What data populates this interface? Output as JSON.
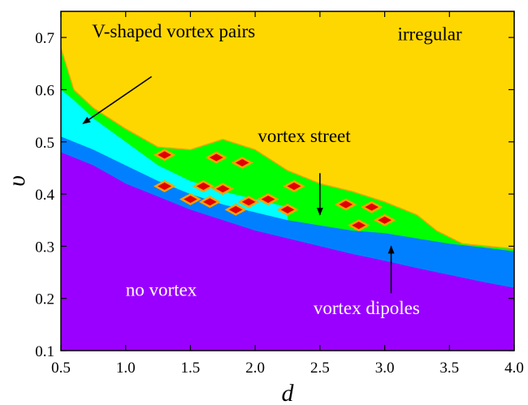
{
  "chart_data": {
    "type": "heatmap",
    "xlabel": "d",
    "ylabel": "υ",
    "xlim": [
      0.5,
      4.0
    ],
    "ylim": [
      0.1,
      0.75
    ],
    "xticks": [
      "0.5",
      "1.0",
      "1.5",
      "2.0",
      "2.5",
      "3.0",
      "3.5",
      "4.0"
    ],
    "yticks": [
      "0.1",
      "0.2",
      "0.3",
      "0.4",
      "0.5",
      "0.6",
      "0.7"
    ],
    "grid": false,
    "colors": {
      "no_vortex": "#9a00ff",
      "vortex_dipoles": "#0080ff",
      "v_shaped": "#00ffff",
      "vortex_street": "#00ff00",
      "irregular": "#ffd700",
      "island_edge": "#ffa000",
      "island_core": "#e00000"
    },
    "boundaries": {
      "no_vortex_upper": [
        [
          0.5,
          0.48
        ],
        [
          0.75,
          0.455
        ],
        [
          1.0,
          0.42
        ],
        [
          1.25,
          0.395
        ],
        [
          1.5,
          0.37
        ],
        [
          1.75,
          0.35
        ],
        [
          2.0,
          0.33
        ],
        [
          2.25,
          0.315
        ],
        [
          2.5,
          0.3
        ],
        [
          2.75,
          0.285
        ],
        [
          3.0,
          0.272
        ],
        [
          3.25,
          0.258
        ],
        [
          3.5,
          0.245
        ],
        [
          3.75,
          0.232
        ],
        [
          4.0,
          0.22
        ]
      ],
      "dipoles_upper": [
        [
          0.5,
          0.51
        ],
        [
          0.75,
          0.485
        ],
        [
          1.0,
          0.455
        ],
        [
          1.25,
          0.425
        ],
        [
          1.5,
          0.4
        ],
        [
          1.75,
          0.38
        ],
        [
          2.0,
          0.365
        ],
        [
          2.25,
          0.35
        ],
        [
          2.5,
          0.34
        ],
        [
          2.75,
          0.33
        ],
        [
          3.0,
          0.325
        ],
        [
          3.25,
          0.315
        ],
        [
          3.5,
          0.305
        ],
        [
          3.75,
          0.298
        ],
        [
          4.0,
          0.29
        ]
      ],
      "v_shaped_upper": [
        [
          0.5,
          0.6
        ],
        [
          0.6,
          0.58
        ],
        [
          0.75,
          0.545
        ],
        [
          1.0,
          0.5
        ],
        [
          1.25,
          0.455
        ],
        [
          1.5,
          0.425
        ],
        [
          1.75,
          0.405
        ],
        [
          2.0,
          0.39
        ],
        [
          2.25,
          0.375
        ]
      ],
      "street_upper": [
        [
          0.5,
          0.68
        ],
        [
          0.6,
          0.6
        ],
        [
          0.75,
          0.565
        ],
        [
          1.0,
          0.525
        ],
        [
          1.25,
          0.49
        ],
        [
          1.5,
          0.485
        ],
        [
          1.75,
          0.505
        ],
        [
          2.0,
          0.485
        ],
        [
          2.25,
          0.445
        ],
        [
          2.5,
          0.42
        ],
        [
          2.75,
          0.405
        ],
        [
          3.0,
          0.385
        ],
        [
          3.25,
          0.36
        ],
        [
          3.4,
          0.33
        ],
        [
          3.6,
          0.305
        ],
        [
          3.8,
          0.3
        ],
        [
          4.0,
          0.295
        ]
      ]
    },
    "islands": [
      [
        1.3,
        0.475
      ],
      [
        1.7,
        0.47
      ],
      [
        1.9,
        0.46
      ],
      [
        2.3,
        0.415
      ],
      [
        2.7,
        0.38
      ],
      [
        2.9,
        0.375
      ],
      [
        3.0,
        0.35
      ],
      [
        1.3,
        0.415
      ],
      [
        1.6,
        0.415
      ],
      [
        1.75,
        0.41
      ],
      [
        1.5,
        0.39
      ],
      [
        1.65,
        0.385
      ],
      [
        1.85,
        0.37
      ],
      [
        1.95,
        0.385
      ],
      [
        2.1,
        0.39
      ],
      [
        2.25,
        0.37
      ],
      [
        2.8,
        0.34
      ]
    ],
    "annotations": [
      {
        "text": "irregular",
        "x": 3.1,
        "y": 0.695,
        "color": "#000000"
      },
      {
        "text": "V-shaped vortex pairs",
        "x": 0.74,
        "y": 0.7,
        "color": "#000000",
        "arrow_from": [
          1.2,
          0.625
        ],
        "arrow_to": [
          0.67,
          0.535
        ]
      },
      {
        "text": "vortex street",
        "x": 2.02,
        "y": 0.5,
        "color": "#000000",
        "arrow_from": [
          2.5,
          0.44
        ],
        "arrow_to": [
          2.5,
          0.36
        ]
      },
      {
        "text": "no vortex",
        "x": 1.0,
        "y": 0.205,
        "color": "#ffffff"
      },
      {
        "text": "vortex dipoles",
        "x": 2.45,
        "y": 0.17,
        "color": "#ffffff",
        "arrow_from": [
          3.05,
          0.21
        ],
        "arrow_to": [
          3.05,
          0.3
        ]
      }
    ]
  }
}
